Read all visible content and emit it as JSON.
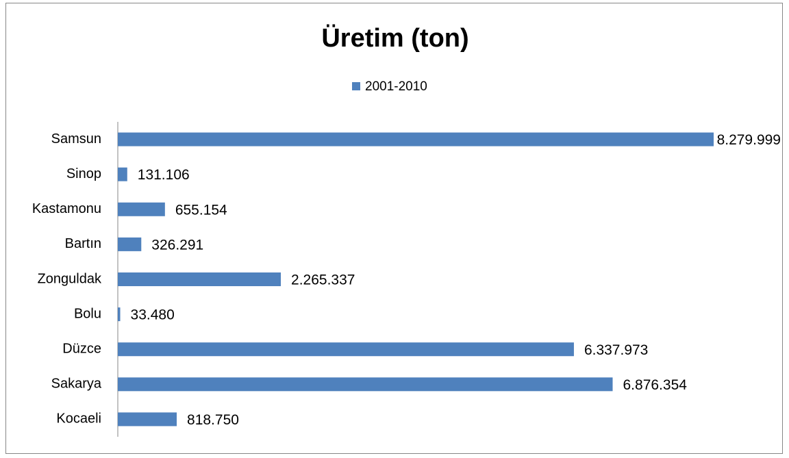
{
  "chart_data": {
    "type": "hbar",
    "title": "Üretim (ton)",
    "categories": [
      "Samsun",
      "Sinop",
      "Kastamonu",
      "Bartın",
      "Zonguldak",
      "Bolu",
      "Düzce",
      "Sakarya",
      "Kocaeli"
    ],
    "series": [
      {
        "name": "2001-2010",
        "color": "#4f81bd",
        "values": [
          8279999,
          131106,
          655154,
          326291,
          2265337,
          33480,
          6337973,
          6876354,
          818750
        ],
        "value_labels": [
          "8.279.999",
          "131.106",
          "655.154",
          "326.291",
          "2.265.337",
          "33.480",
          "6.337.973",
          "6.876.354",
          "818.750"
        ]
      }
    ],
    "legend": "top"
  }
}
